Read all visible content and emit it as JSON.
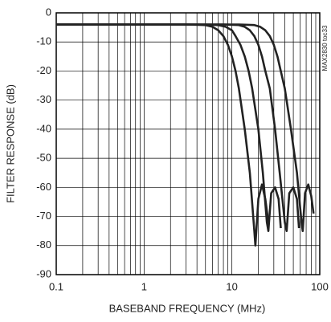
{
  "chart_data": {
    "type": "line",
    "x_label": "BASEBAND FREQUENCY (MHz)",
    "y_label": "FILTER RESPONSE (dB)",
    "annotation": "MAX2830 toc33",
    "log_x": true,
    "grid": true,
    "xlim": [
      0.1,
      100
    ],
    "ylim": [
      -90,
      0
    ],
    "xticks": [
      0.1,
      1,
      10,
      100
    ],
    "xminorticks": [
      0.2,
      0.3,
      0.4,
      0.5,
      0.6,
      0.7,
      0.8,
      0.9,
      2,
      3,
      4,
      5,
      6,
      7,
      8,
      9,
      20,
      30,
      40,
      50,
      60,
      70,
      80,
      90
    ],
    "yticks": [
      0,
      -10,
      -20,
      -30,
      -40,
      -50,
      -60,
      -70,
      -80,
      -90
    ],
    "series": [
      {
        "color": "#222",
        "x": [
          0.1,
          3,
          5,
          6,
          7,
          8,
          9,
          10,
          11,
          12,
          14,
          16,
          18,
          18.5,
          20,
          22,
          24,
          26
        ],
        "values": [
          -4,
          -4,
          -4.2,
          -4.8,
          -6,
          -8,
          -11,
          -15,
          -20,
          -26,
          -40,
          -55,
          -75,
          -80,
          -64,
          -59,
          -64,
          -72
        ]
      },
      {
        "color": "#222",
        "x": [
          0.1,
          4,
          7,
          8.5,
          10,
          11,
          12.5,
          14,
          15.5,
          17,
          20,
          22.5,
          25,
          26,
          28,
          31,
          34,
          36
        ],
        "values": [
          -4,
          -4,
          -4.2,
          -4.8,
          -6,
          -8,
          -11,
          -15,
          -20,
          -26,
          -40,
          -55,
          -72,
          -75,
          -62,
          -60,
          -64,
          -74
        ]
      },
      {
        "color": "#222",
        "x": [
          0.1,
          8,
          12,
          14,
          16,
          18,
          20,
          22,
          24,
          27,
          31,
          35,
          40,
          42,
          45,
          50,
          55,
          58
        ],
        "values": [
          -4,
          -4,
          -4.2,
          -4.8,
          -6,
          -8,
          -11,
          -15,
          -20,
          -26,
          -40,
          -55,
          -72,
          -75,
          -62,
          -60,
          -64,
          -74
        ]
      },
      {
        "color": "#222",
        "x": [
          0.1,
          12,
          18,
          21,
          24,
          27,
          30,
          33,
          36,
          40,
          47,
          55,
          62,
          64,
          68,
          74,
          80,
          85
        ],
        "values": [
          -4,
          -4,
          -4.2,
          -4.8,
          -6,
          -8,
          -11,
          -15,
          -20,
          -26,
          -40,
          -55,
          -72,
          -75,
          -62,
          -59,
          -63,
          -69
        ]
      }
    ]
  }
}
